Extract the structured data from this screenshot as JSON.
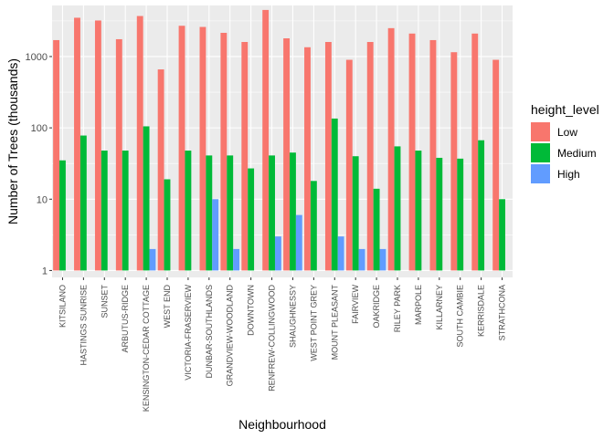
{
  "chart_data": {
    "type": "bar",
    "xlabel": "Neighbourhood",
    "ylabel": "Number of Trees (thousands)",
    "y_scale": "log10",
    "ylim": [
      0.8,
      5200
    ],
    "y_ticks": [
      1,
      10,
      100,
      1000
    ],
    "y_tick_labels": [
      "1",
      "10",
      "100",
      "1000"
    ],
    "grid": true,
    "legend": {
      "title": "height_level",
      "placement": "right"
    },
    "categories": [
      "KITSILANO",
      "HASTINGS SUNRISE",
      "SUNSET",
      "ARBUTUS-RIDGE",
      "KENSINGTON-CEDAR COTTAGE",
      "WEST END",
      "VICTORIA-FRASERVIEW",
      "DUNBAR-SOUTHLANDS",
      "GRANDVIEW-WOODLAND",
      "DOWNTOWN",
      "RENFREW-COLLINGWOOD",
      "SHAUGHNESSY",
      "WEST POINT GREY",
      "MOUNT PLEASANT",
      "FAIRVIEW",
      "OAKRIDGE",
      "RILEY PARK",
      "MARPOLE",
      "KILLARNEY",
      "SOUTH CAMBIE",
      "KERRISDALE",
      "STRATHCONA"
    ],
    "series": [
      {
        "name": "Low",
        "color": "#F8766D",
        "values": [
          1700,
          3500,
          3200,
          1750,
          3700,
          660,
          2700,
          2600,
          2150,
          1600,
          4500,
          1800,
          1350,
          1600,
          900,
          1600,
          2500,
          2100,
          1700,
          1150,
          2100,
          900
        ]
      },
      {
        "name": "Medium",
        "color": "#00BA38",
        "values": [
          35,
          78,
          48,
          48,
          105,
          19,
          48,
          41,
          41,
          27,
          41,
          45,
          18,
          135,
          40,
          14,
          55,
          48,
          38,
          37,
          67,
          10
        ]
      },
      {
        "name": "High",
        "color": "#619CFF",
        "values": [
          null,
          null,
          null,
          null,
          2,
          null,
          null,
          10,
          2,
          null,
          3,
          6,
          null,
          3,
          2,
          2,
          null,
          null,
          null,
          null,
          null,
          null
        ]
      }
    ]
  }
}
